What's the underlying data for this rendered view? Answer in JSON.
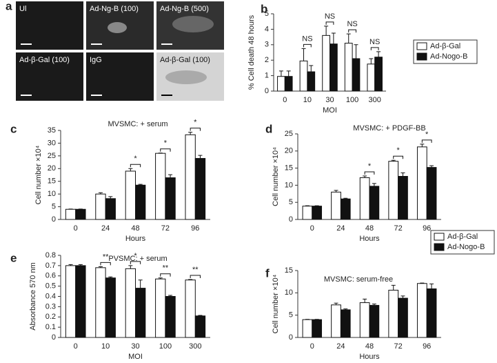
{
  "panel_a": {
    "panel_label": "a",
    "images": [
      "Ul",
      "Ad-Ng-B (100)",
      "Ad-Ng-B (500)",
      "Ad-β-Gal (100)",
      "IgG",
      "Ad-β-Gal (100)"
    ]
  },
  "chart_data": [
    {
      "type": "bar",
      "panel_label": "b",
      "ylabel": "% Cell death 48 hours",
      "xlabel": "MOI",
      "categories": [
        "0",
        "10",
        "30",
        "100",
        "300"
      ],
      "ylim": [
        0,
        5
      ],
      "yticks": [
        0,
        1,
        2,
        3,
        4,
        5
      ],
      "legend": true,
      "annotations": [
        null,
        "NS",
        "NS",
        "NS",
        "NS"
      ],
      "series": [
        {
          "name": "Ad-β-Gal",
          "color": "#ffffff",
          "values": [
            0.95,
            1.95,
            3.6,
            3.1,
            1.75
          ],
          "errors": [
            0.35,
            0.8,
            0.6,
            0.6,
            0.35
          ]
        },
        {
          "name": "Ad-Nogo-B",
          "color": "#111111",
          "values": [
            0.95,
            1.25,
            3.05,
            2.1,
            2.2
          ],
          "errors": [
            0.35,
            0.4,
            0.7,
            0.9,
            0.35
          ]
        }
      ]
    },
    {
      "type": "bar",
      "panel_label": "c",
      "title": "MVSMC: + serum",
      "ylabel": "Cell number ×10⁴",
      "xlabel": "Hours",
      "categories": [
        "0",
        "24",
        "48",
        "72",
        "96"
      ],
      "ylim": [
        0,
        35
      ],
      "yticks": [
        0,
        5,
        10,
        15,
        20,
        25,
        30,
        35
      ],
      "legend": false,
      "annotations": [
        null,
        null,
        "*",
        "*",
        "*"
      ],
      "series": [
        {
          "name": "Ad-β-Gal",
          "color": "#ffffff",
          "values": [
            4,
            10,
            19,
            26,
            33.3
          ],
          "errors": [
            0.1,
            0.5,
            1,
            0.1,
            1
          ]
        },
        {
          "name": "Ad-Nogo-B",
          "color": "#111111",
          "values": [
            4,
            8.2,
            13.5,
            16.4,
            24
          ],
          "errors": [
            0.1,
            0.8,
            0.3,
            1.2,
            1.2
          ]
        }
      ]
    },
    {
      "type": "bar",
      "panel_label": "d",
      "title": "MVSMC: + PDGF-BB",
      "ylabel": "Cell number ×10⁴",
      "xlabel": "Hours",
      "categories": [
        "0",
        "24",
        "48",
        "72",
        "96"
      ],
      "ylim": [
        0,
        25
      ],
      "yticks": [
        0,
        5,
        10,
        15,
        20,
        25
      ],
      "legend": false,
      "annotations": [
        null,
        null,
        "*",
        "*",
        "*"
      ],
      "series": [
        {
          "name": "Ad-β-Gal",
          "color": "#ffffff",
          "values": [
            3.9,
            8,
            12.2,
            17,
            21.2
          ],
          "errors": [
            0.1,
            0.5,
            0.5,
            0.3,
            0.8
          ]
        },
        {
          "name": "Ad-Nogo-B",
          "color": "#111111",
          "values": [
            3.9,
            6,
            9.7,
            12.6,
            15.2
          ],
          "errors": [
            0.1,
            0.2,
            0.8,
            1,
            0.5
          ]
        }
      ]
    },
    {
      "type": "bar",
      "panel_label": "e",
      "title": "PVSMC: + serum",
      "ylabel": "Absorbance 570 nm",
      "xlabel": "MOI",
      "categories": [
        "0",
        "10",
        "30",
        "100",
        "300"
      ],
      "ylim": [
        0,
        0.8
      ],
      "yticks": [
        0,
        0.1,
        0.2,
        0.3,
        0.4,
        0.5,
        0.6,
        0.7,
        0.8
      ],
      "legend": true,
      "annotations": [
        null,
        "**",
        "*",
        "**",
        "**"
      ],
      "series": [
        {
          "name": "Ad-β-Gal",
          "color": "#ffffff",
          "values": [
            0.7,
            0.68,
            0.67,
            0.57,
            0.56
          ],
          "errors": [
            0.01,
            0.01,
            0.03,
            0.01,
            0.005
          ]
        },
        {
          "name": "Ad-Nogo-B",
          "color": "#111111",
          "values": [
            0.7,
            0.58,
            0.48,
            0.4,
            0.21
          ],
          "errors": [
            0.01,
            0.01,
            0.08,
            0.01,
            0.005
          ]
        }
      ]
    },
    {
      "type": "bar",
      "panel_label": "f",
      "title": "MVSMC: serum-free",
      "ylabel": "Cell number ×10⁴",
      "xlabel": "Hours",
      "categories": [
        "0",
        "24",
        "48",
        "72",
        "96"
      ],
      "ylim": [
        0,
        15
      ],
      "yticks": [
        0,
        5,
        10,
        15
      ],
      "legend": false,
      "annotations": [
        null,
        null,
        null,
        null,
        null
      ],
      "series": [
        {
          "name": "Ad-β-Gal",
          "color": "#ffffff",
          "values": [
            4,
            7.3,
            7.8,
            10.6,
            12.1
          ],
          "errors": [
            0.05,
            0.4,
            0.8,
            1.1,
            0.1
          ]
        },
        {
          "name": "Ad-Nogo-B",
          "color": "#111111",
          "values": [
            4,
            6.2,
            7.2,
            8.8,
            10.9
          ],
          "errors": [
            0.05,
            0.2,
            0.3,
            0.5,
            1.1
          ]
        }
      ]
    }
  ]
}
